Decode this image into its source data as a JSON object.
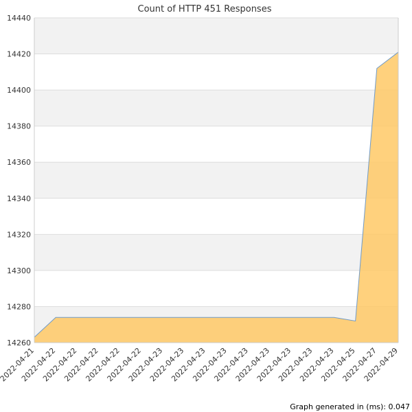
{
  "chart_data": {
    "type": "area",
    "title": "Count of HTTP 451 Responses",
    "xlabel": "",
    "ylabel": "",
    "x_tick_labels": [
      "2022-04-21",
      "2022-04-22",
      "2022-04-22",
      "2022-04-22",
      "2022-04-22",
      "2022-04-22",
      "2022-04-23",
      "2022-04-23",
      "2022-04-23",
      "2022-04-23",
      "2022-04-23",
      "2022-04-23",
      "2022-04-23",
      "2022-04-23",
      "2022-04-23",
      "2022-04-25",
      "2022-04-27",
      "2022-04-29"
    ],
    "values": [
      14263,
      14274,
      14274,
      14274,
      14274,
      14274,
      14274,
      14274,
      14274,
      14274,
      14274,
      14274,
      14274,
      14274,
      14274,
      14272,
      14412,
      14421
    ],
    "y_ticks": [
      14260,
      14280,
      14300,
      14320,
      14340,
      14360,
      14380,
      14400,
      14420,
      14440
    ],
    "ylim": [
      14260,
      14440
    ],
    "grid": true,
    "legend": "none",
    "colors": {
      "fill": "#ffc966",
      "line": "#6f9ac8",
      "band": "#f2f2f2",
      "grid": "#dddddd",
      "axis": "#cccccc",
      "text": "#333333"
    }
  },
  "footer": {
    "note": "Graph generated in (ms): 0.047"
  }
}
